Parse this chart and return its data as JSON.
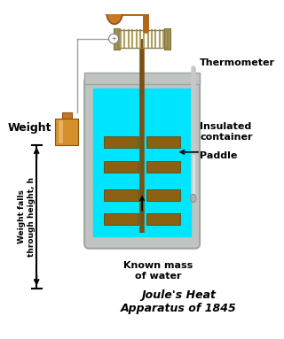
{
  "bg_color": "#ffffff",
  "water_color": "#00e5ff",
  "container_gray": "#c0c4c0",
  "container_dark_gray": "#a0a4a0",
  "paddle_color": "#8B6010",
  "shaft_color": "#7a5010",
  "weight_top_color": "#c07828",
  "weight_body_color": "#d4902a",
  "weight_light_color": "#e8b060",
  "spool_color": "#c8b870",
  "spool_line_color": "#b0a060",
  "handle_color": "#b06818",
  "handle_oval_color": "#c87828",
  "string_color": "#a0a0a0",
  "therm_color": "#c8c8c8",
  "therm_bulb_color": "#b0b0b0",
  "arrow_color": "#000000",
  "text_color": "#000000",
  "title_text": "Joule's Heat\nApparatus of 1845",
  "label_thermometer": "Thermometer",
  "label_insulated": "Insulated\ncontainer",
  "label_paddle": "Paddle",
  "label_water": "Known mass\nof water",
  "label_weight": "Weight",
  "label_height": "Weight falls\nthrough height, h"
}
